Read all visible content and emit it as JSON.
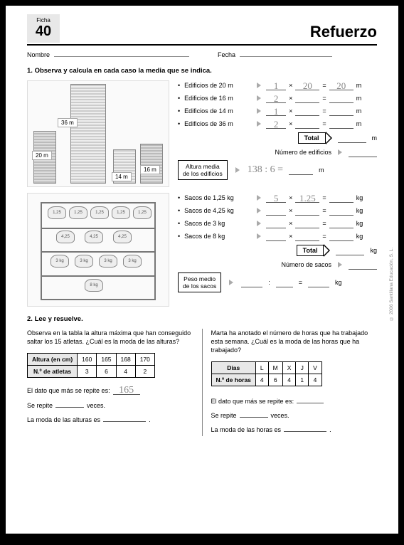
{
  "ficha": {
    "label": "Ficha",
    "num": "40"
  },
  "title": "Refuerzo",
  "fields": {
    "nombre": "Nombre",
    "fecha": "Fecha"
  },
  "q1": {
    "num": "1.",
    "text": "Observa y calcula en cada caso la media que se indica.",
    "buildings": {
      "l36": "36 m",
      "l20": "20 m",
      "l14": "14 m",
      "l16": "16 m"
    },
    "rows1": [
      {
        "label": "Edificios de 20 m",
        "a": "1",
        "b": "20",
        "r": "20",
        "unit": "m"
      },
      {
        "label": "Edificios de 16 m",
        "a": "2",
        "b": "",
        "r": "",
        "unit": "m"
      },
      {
        "label": "Edificios de 14 m",
        "a": "1",
        "b": "",
        "r": "",
        "unit": "m"
      },
      {
        "label": "Edificios de 36 m",
        "a": "2",
        "b": "",
        "r": "",
        "unit": "m"
      }
    ],
    "total": "Total",
    "num_edif": "Número de edificios",
    "media1_label1": "Altura media",
    "media1_label2": "de los edificios",
    "media1_calc": "138 : 6 =",
    "rows2": [
      {
        "label": "Sacos de 1,25 kg",
        "a": "5",
        "b": "1.25",
        "r": "",
        "unit": "kg"
      },
      {
        "label": "Sacos de 4,25 kg",
        "a": "",
        "b": "",
        "r": "",
        "unit": "kg"
      },
      {
        "label": "Sacos de 3 kg",
        "a": "",
        "b": "",
        "r": "",
        "unit": "kg"
      },
      {
        "label": "Sacos de 8 kg",
        "a": "",
        "b": "",
        "r": "",
        "unit": "kg"
      }
    ],
    "num_sacos": "Número de sacos",
    "media2_label1": "Peso medio",
    "media2_label2": "de los sacos",
    "sacks": [
      "1,25",
      "1,25",
      "1,25",
      "1,25",
      "1,25",
      "4,25",
      "4,25",
      "4,25",
      "3 kg",
      "3 kg",
      "3 kg",
      "3 kg",
      "8 kg"
    ]
  },
  "q2": {
    "num": "2.",
    "text": "Lee y resuelve.",
    "left": {
      "intro": "Observa en la tabla la altura máxima que han conseguido saltar los 15 atletas. ¿Cuál es la moda de las alturas?",
      "h1": "Altura (en cm)",
      "h2": "N.º de atletas",
      "cols": [
        "160",
        "165",
        "168",
        "170"
      ],
      "vals": [
        "3",
        "6",
        "4",
        "2"
      ],
      "a1_pre": "El dato que más se repite es:",
      "a1_val": "165",
      "a2_pre": "Se repite",
      "a2_post": "veces.",
      "a3_pre": "La moda de las alturas es"
    },
    "right": {
      "intro": "Marta ha anotado el número de horas que ha trabajado esta semana. ¿Cuál es la moda de las horas que ha trabajado?",
      "h1": "Días",
      "h2": "N.º de horas",
      "cols": [
        "L",
        "M",
        "X",
        "J",
        "V"
      ],
      "vals": [
        "4",
        "6",
        "4",
        "1",
        "4"
      ],
      "a1_pre": "El dato que más se repite es:",
      "a2_pre": "Se repite",
      "a2_post": "veces.",
      "a3_pre": "La moda de las horas es"
    }
  },
  "copyright": "© 2006 Santillana Educación, S. L."
}
